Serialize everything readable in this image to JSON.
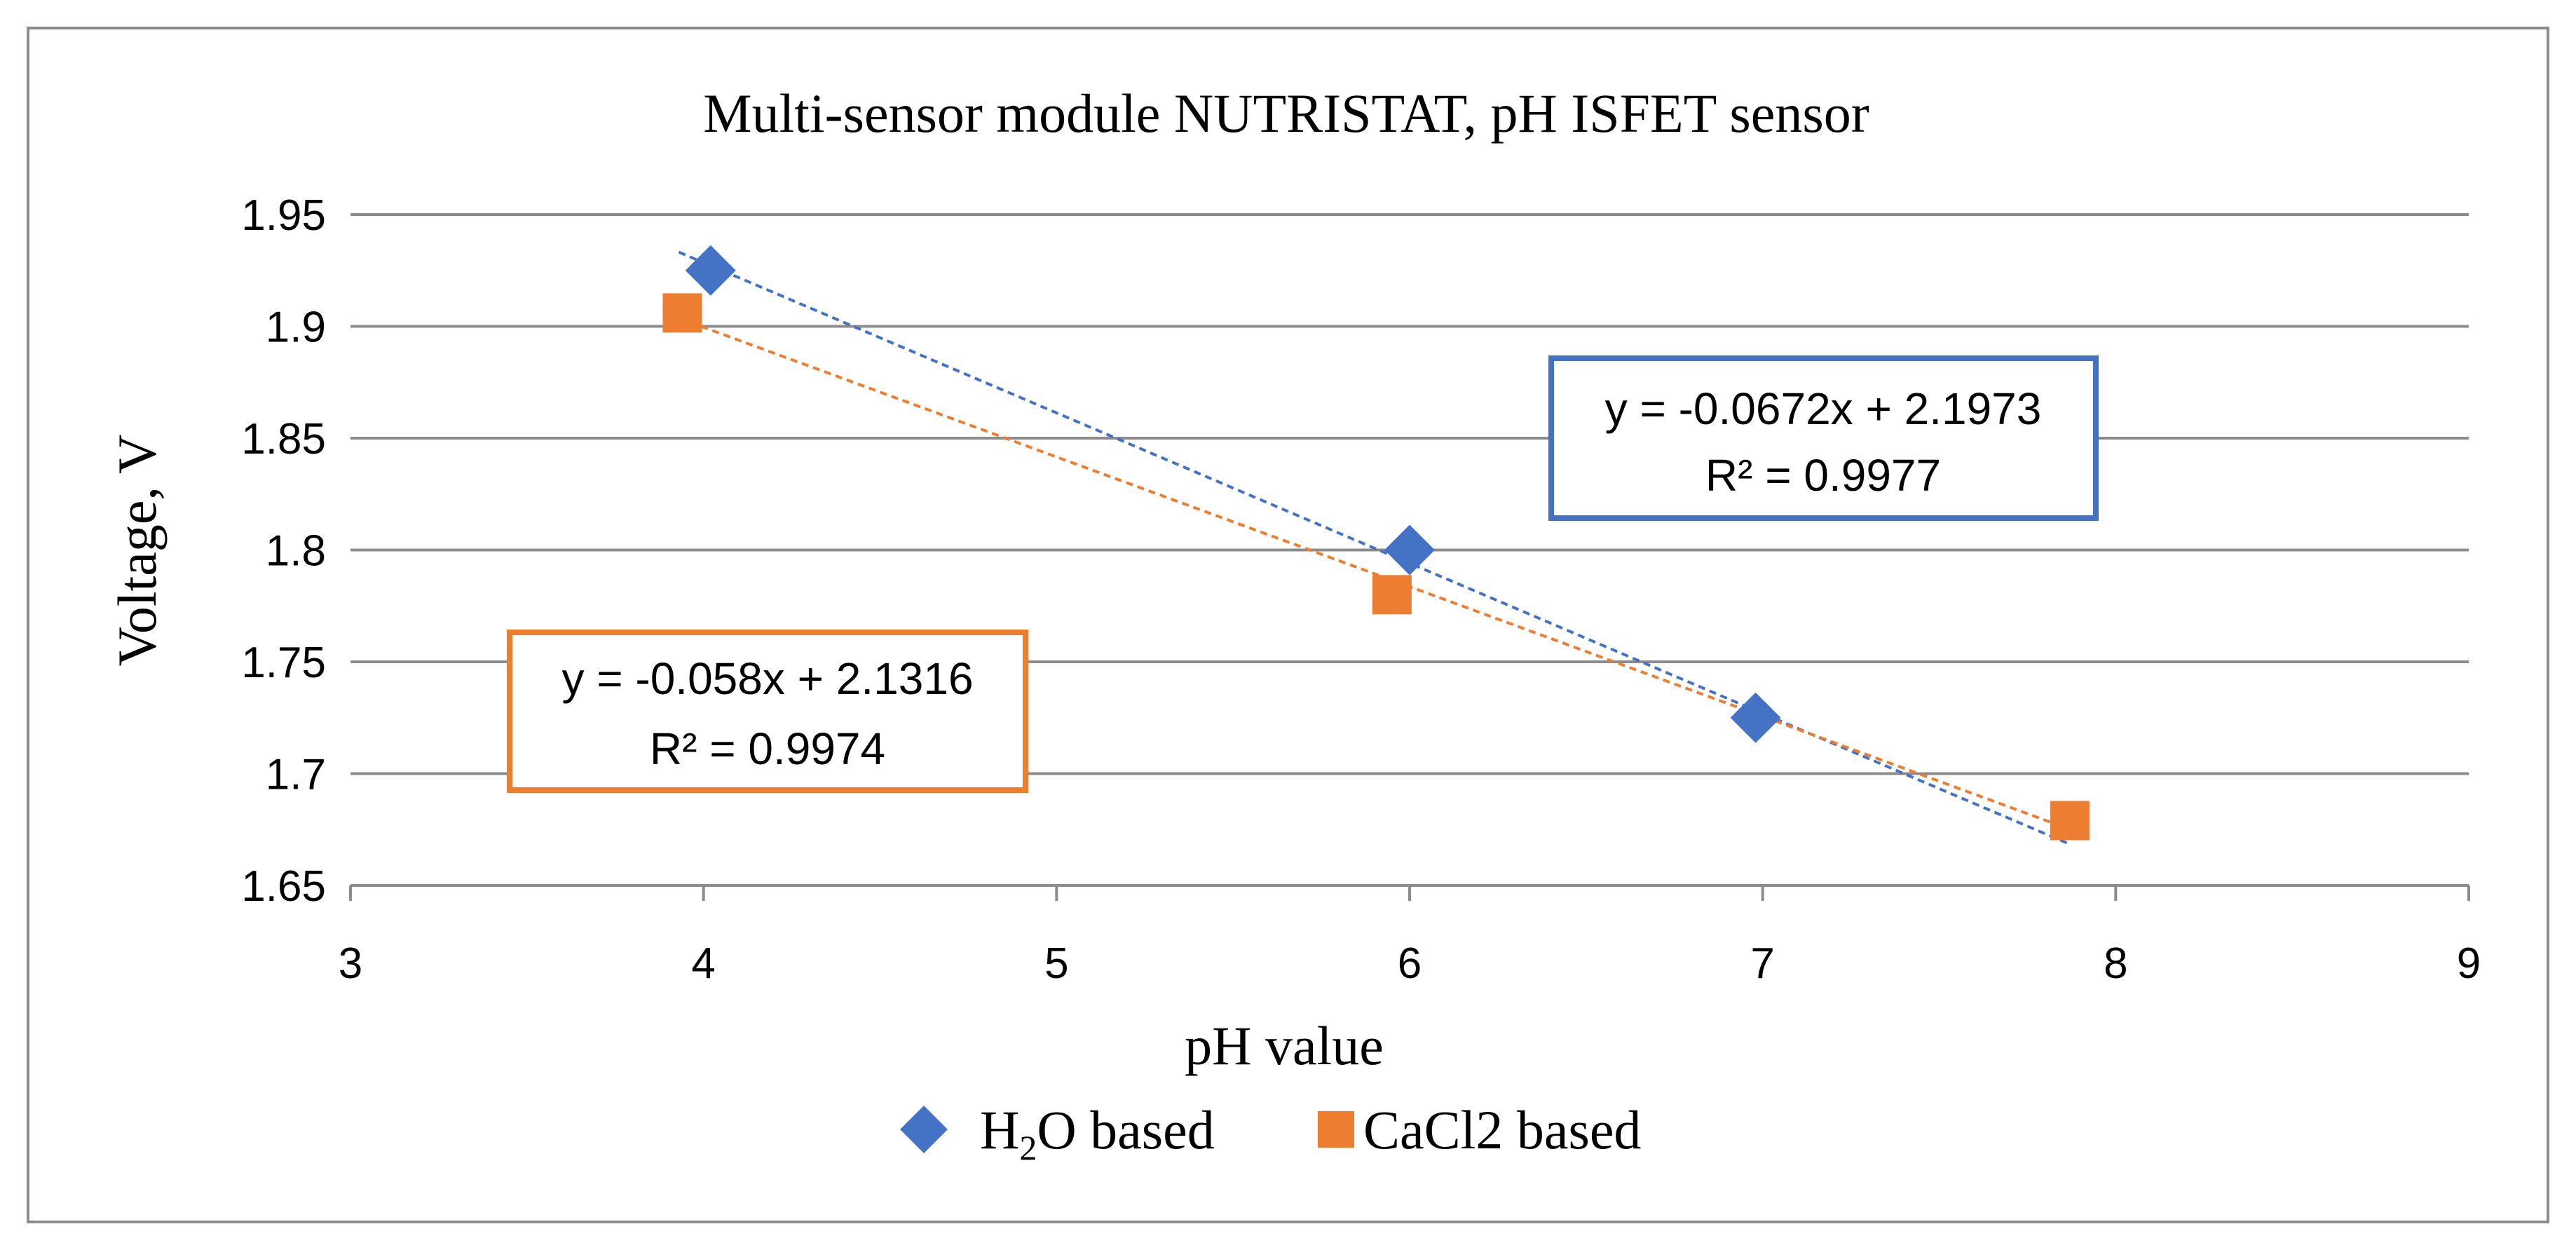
{
  "chart_data": {
    "type": "scatter",
    "title": "Multi-sensor module NUTRISTAT, pH ISFET sensor",
    "xlabel": "pH value",
    "ylabel": "Voltage, V",
    "xlim": [
      3,
      9
    ],
    "ylim": [
      1.65,
      1.95
    ],
    "x_ticks": [
      "3",
      "4",
      "5",
      "6",
      "7",
      "8",
      "9"
    ],
    "y_ticks": [
      "1.65",
      "1.7",
      "1.75",
      "1.8",
      "1.85",
      "1.9",
      "1.95"
    ],
    "grid": "horizontal",
    "legend_position": "bottom",
    "series": [
      {
        "name_prefix": "H",
        "name_sub": "2",
        "name_suffix": "O based",
        "marker": "diamond",
        "color": "#4472C4",
        "points": [
          {
            "x": 4.02,
            "y": 1.925
          },
          {
            "x": 6.0,
            "y": 1.8
          },
          {
            "x": 6.98,
            "y": 1.725
          }
        ],
        "trendline": {
          "slope": -0.0672,
          "intercept": 2.1973,
          "x_range": [
            3.93,
            7.87
          ],
          "equation": "y = -0.0672x + 2.1973",
          "r2": "R² = 0.9977"
        }
      },
      {
        "name": "CaCl2 based",
        "marker": "square",
        "color": "#ED7D31",
        "points": [
          {
            "x": 3.94,
            "y": 1.906
          },
          {
            "x": 5.95,
            "y": 1.78
          },
          {
            "x": 7.87,
            "y": 1.679
          }
        ],
        "trendline": {
          "slope": -0.058,
          "intercept": 2.1316,
          "x_range": [
            3.93,
            7.87
          ],
          "equation": "y = -0.058x + 2.1316",
          "r2": "R² = 0.9974"
        }
      }
    ]
  }
}
